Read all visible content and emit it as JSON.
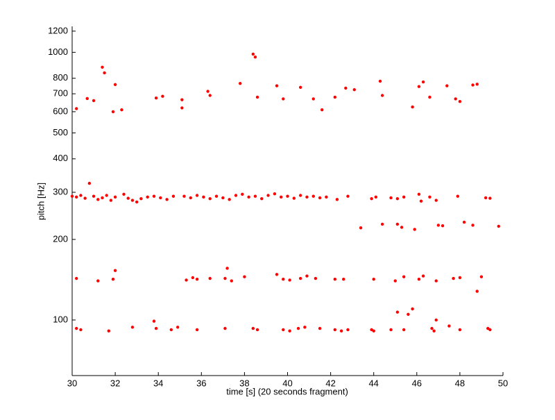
{
  "chart_data": {
    "type": "scatter",
    "xlabel": "time [s] (20 seconds fragment)",
    "ylabel": "pitch [Hz]",
    "color": "#ff0000",
    "log_y": true,
    "grid": false,
    "xlim": [
      30,
      50
    ],
    "xticks": [
      30,
      32,
      34,
      36,
      38,
      40,
      42,
      44,
      46,
      48,
      50
    ],
    "ylim": [
      62,
      1250
    ],
    "yticks": [
      100,
      200,
      300,
      400,
      500,
      600,
      700,
      800,
      1000,
      1200
    ],
    "x": [
      30.2,
      30.7,
      31.0,
      31.4,
      31.5,
      31.9,
      32.0,
      32.3,
      33.9,
      34.2,
      35.1,
      35.1,
      36.3,
      36.4,
      37.8,
      38.4,
      38.5,
      38.6,
      39.5,
      39.8,
      40.6,
      41.2,
      41.6,
      42.2,
      42.7,
      43.1,
      44.3,
      44.4,
      45.8,
      46.1,
      46.3,
      46.6,
      47.4,
      47.8,
      48.0,
      48.6,
      48.8,
      30.0,
      30.2,
      30.4,
      30.6,
      30.8,
      31.0,
      31.2,
      31.4,
      31.6,
      31.8,
      32.0,
      32.4,
      32.6,
      32.8,
      33.0,
      33.2,
      33.5,
      33.8,
      34.1,
      34.4,
      34.7,
      35.2,
      35.5,
      35.8,
      36.1,
      36.4,
      36.7,
      37.0,
      37.3,
      37.6,
      37.9,
      38.2,
      38.5,
      38.8,
      39.1,
      39.4,
      39.7,
      40.0,
      40.3,
      40.6,
      40.9,
      41.2,
      41.5,
      41.8,
      42.3,
      42.8,
      43.9,
      44.1,
      44.8,
      45.1,
      45.4,
      46.1,
      46.2,
      46.6,
      46.9,
      47.9,
      49.2,
      49.4,
      43.4,
      44.4,
      45.1,
      45.3,
      45.9,
      47.0,
      47.2,
      48.2,
      48.6,
      49.8,
      30.2,
      31.2,
      31.9,
      32.0,
      35.3,
      35.6,
      35.8,
      36.4,
      37.1,
      37.2,
      37.4,
      38.0,
      39.5,
      39.8,
      40.1,
      40.6,
      40.9,
      41.3,
      42.2,
      42.6,
      44.0,
      45.0,
      45.4,
      46.1,
      46.3,
      46.9,
      47.7,
      48.0,
      48.8,
      49.0,
      45.1,
      45.8,
      45.6,
      46.9,
      30.2,
      30.4,
      31.7,
      32.8,
      33.8,
      33.9,
      34.6,
      34.9,
      35.8,
      37.1,
      38.4,
      38.6,
      39.8,
      40.1,
      40.5,
      40.8,
      41.5,
      42.2,
      42.5,
      42.8,
      43.9,
      44.0,
      44.8,
      45.4,
      46.7,
      46.8,
      47.5,
      48.0,
      49.3,
      49.4
    ],
    "y": [
      616,
      672,
      660,
      880,
      838,
      600,
      758,
      610,
      675,
      685,
      620,
      665,
      715,
      690,
      765,
      985,
      960,
      680,
      750,
      670,
      740,
      670,
      610,
      680,
      735,
      725,
      780,
      690,
      625,
      745,
      775,
      680,
      750,
      670,
      655,
      755,
      760,
      290,
      288,
      292,
      285,
      324,
      290,
      282,
      286,
      292,
      280,
      288,
      295,
      285,
      280,
      276,
      284,
      288,
      290,
      286,
      282,
      290,
      290,
      286,
      292,
      288,
      284,
      290,
      286,
      282,
      292,
      295,
      288,
      290,
      284,
      292,
      296,
      288,
      290,
      285,
      292,
      288,
      290,
      286,
      288,
      282,
      290,
      284,
      288,
      286,
      284,
      288,
      295,
      278,
      288,
      280,
      290,
      286,
      285,
      221,
      228,
      228,
      222,
      218,
      226,
      225,
      232,
      226,
      224,
      143,
      140,
      142,
      153,
      141,
      144,
      142,
      143,
      143,
      156,
      140,
      145,
      148,
      142,
      141,
      143,
      146,
      143,
      142,
      142,
      142,
      140,
      145,
      142,
      146,
      140,
      143,
      144,
      128,
      145,
      107,
      110,
      105,
      100,
      93,
      92,
      91,
      94,
      99,
      93,
      92,
      94,
      92,
      93,
      93,
      92,
      92,
      91,
      93,
      94,
      93,
      92,
      91,
      92,
      92,
      91,
      92,
      92,
      93,
      91,
      95,
      92,
      93,
      92
    ]
  }
}
